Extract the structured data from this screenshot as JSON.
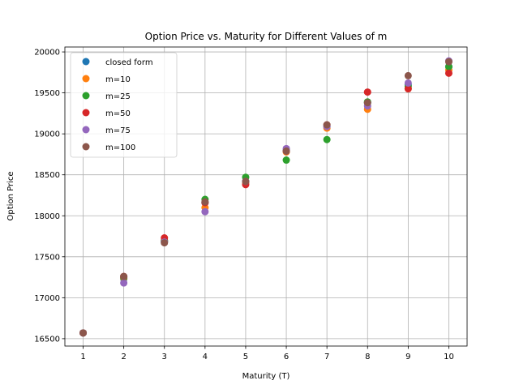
{
  "chart_data": {
    "type": "scatter",
    "title": "Option Price vs. Maturity for Different Values of m",
    "xlabel": "Maturity (T)",
    "ylabel": "Option Price",
    "xlim": [
      0.55,
      10.45
    ],
    "ylim": [
      16410,
      20060
    ],
    "xticks": [
      1,
      2,
      3,
      4,
      5,
      6,
      7,
      8,
      9,
      10
    ],
    "yticks": [
      16500,
      17000,
      17500,
      18000,
      18500,
      19000,
      19500,
      20000
    ],
    "grid": true,
    "legend_position": "top-left",
    "series": [
      {
        "name": "closed form",
        "color": "#1f77b4",
        "x": [
          1,
          2,
          3,
          4,
          5,
          6,
          7,
          8,
          9,
          10
        ],
        "y": [
          16570,
          17230,
          17690,
          18160,
          18420,
          18800,
          19090,
          19380,
          19600,
          19820
        ]
      },
      {
        "name": "m=10",
        "color": "#ff7f0e",
        "x": [
          1,
          2,
          3,
          4,
          5,
          6,
          7,
          8,
          9,
          10
        ],
        "y": [
          16570,
          17240,
          17700,
          18100,
          18400,
          18780,
          19070,
          19300,
          19550,
          19780
        ]
      },
      {
        "name": "m=25",
        "color": "#2ca02c",
        "x": [
          1,
          2,
          3,
          4,
          5,
          6,
          7,
          8,
          9,
          10
        ],
        "y": [
          16570,
          17250,
          17690,
          18200,
          18470,
          18680,
          18930,
          19390,
          19580,
          19820
        ]
      },
      {
        "name": "m=50",
        "color": "#d62728",
        "x": [
          1,
          2,
          3,
          4,
          5,
          6,
          7,
          8,
          9,
          10
        ],
        "y": [
          16570,
          17260,
          17730,
          18160,
          18380,
          18790,
          19110,
          19510,
          19550,
          19740
        ]
      },
      {
        "name": "m=75",
        "color": "#9467bd",
        "x": [
          1,
          2,
          3,
          4,
          5,
          6,
          7,
          8,
          9,
          10
        ],
        "y": [
          16570,
          17180,
          17680,
          18050,
          18420,
          18820,
          19090,
          19340,
          19620,
          19890
        ]
      },
      {
        "name": "m=100",
        "color": "#8c564b",
        "x": [
          1,
          2,
          3,
          4,
          5,
          6,
          7,
          8,
          9,
          10
        ],
        "y": [
          16570,
          17260,
          17670,
          18170,
          18420,
          18790,
          19110,
          19380,
          19710,
          19880
        ]
      }
    ]
  }
}
